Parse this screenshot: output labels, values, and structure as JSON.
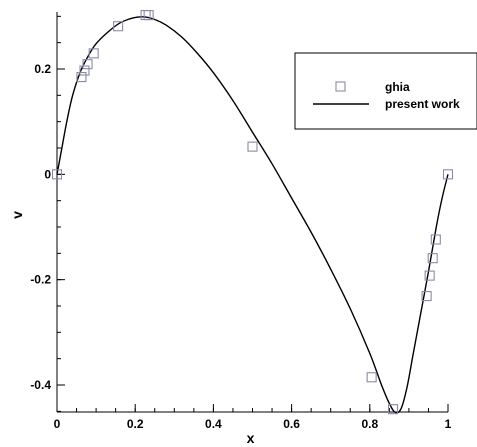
{
  "chart_data": {
    "type": "scatter",
    "title": "",
    "xlabel": "x",
    "ylabel": "v",
    "xlim": [
      0,
      1
    ],
    "ylim": [
      -0.45,
      0.3
    ],
    "xticks": [
      0,
      0.2,
      0.4,
      0.6,
      0.8,
      1
    ],
    "xtick_labels": [
      "0",
      "0.2",
      "0.4",
      "0.6",
      "0.8",
      "1"
    ],
    "yticks": [
      -0.4,
      -0.2,
      0,
      0.2
    ],
    "ytick_labels": [
      "-0.4",
      "-0.2",
      "0",
      "0.2"
    ],
    "grid": false,
    "legend_position": "top-right",
    "series": [
      {
        "name": "ghia",
        "kind": "markers",
        "marker": "square-open",
        "color": "#8a8aa8",
        "x": [
          0,
          0.0625,
          0.0703,
          0.0781,
          0.0938,
          0.1563,
          0.2266,
          0.2344,
          0.5,
          0.8047,
          0.8594,
          0.9453,
          0.9531,
          0.9609,
          0.9688,
          1
        ],
        "y": [
          0,
          0.1847,
          0.1971,
          0.2092,
          0.2297,
          0.2812,
          0.3025,
          0.3023,
          0.0526,
          -0.3853,
          -0.4459,
          -0.2312,
          -0.1923,
          -0.1592,
          -0.1237,
          0
        ]
      },
      {
        "name": "present work",
        "kind": "line",
        "color": "#000000",
        "x": [
          0,
          0.01,
          0.025,
          0.04,
          0.06,
          0.08,
          0.1,
          0.13,
          0.16,
          0.19,
          0.22,
          0.25,
          0.28,
          0.32,
          0.36,
          0.4,
          0.45,
          0.5,
          0.55,
          0.6,
          0.65,
          0.7,
          0.75,
          0.8,
          0.83,
          0.85,
          0.865,
          0.88,
          0.895,
          0.91,
          0.93,
          0.95,
          0.97,
          0.985,
          1
        ],
        "y": [
          0,
          0.04,
          0.1,
          0.15,
          0.195,
          0.225,
          0.248,
          0.27,
          0.287,
          0.296,
          0.299,
          0.294,
          0.283,
          0.26,
          0.229,
          0.193,
          0.14,
          0.08,
          0.02,
          -0.045,
          -0.11,
          -0.18,
          -0.255,
          -0.34,
          -0.4,
          -0.435,
          -0.452,
          -0.445,
          -0.405,
          -0.345,
          -0.265,
          -0.185,
          -0.1,
          -0.045,
          0
        ]
      }
    ]
  }
}
